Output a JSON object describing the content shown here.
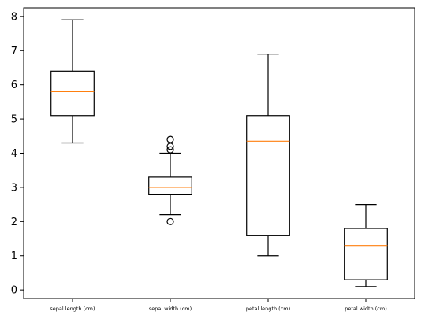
{
  "chart_data": {
    "type": "box",
    "title": "",
    "xlabel": "",
    "ylabel": "",
    "ylim": [
      -0.25,
      8.25
    ],
    "yticks": [
      0,
      1,
      2,
      3,
      4,
      5,
      6,
      7,
      8
    ],
    "grid": false,
    "categories": [
      "sepal length (cm)",
      "sepal width (cm)",
      "petal length (cm)",
      "petal width (cm)"
    ],
    "boxes": [
      {
        "category": "sepal length (cm)",
        "whisker_low": 4.3,
        "q1": 5.1,
        "median": 5.8,
        "q3": 6.4,
        "whisker_high": 7.9,
        "outliers": []
      },
      {
        "category": "sepal width (cm)",
        "whisker_low": 2.2,
        "q1": 2.8,
        "median": 3.0,
        "q3": 3.3,
        "whisker_high": 4.0,
        "outliers": [
          4.4,
          4.1,
          4.2,
          2.0
        ]
      },
      {
        "category": "petal length (cm)",
        "whisker_low": 1.0,
        "q1": 1.6,
        "median": 4.35,
        "q3": 5.1,
        "whisker_high": 6.9,
        "outliers": []
      },
      {
        "category": "petal width (cm)",
        "whisker_low": 0.1,
        "q1": 0.3,
        "median": 1.3,
        "q3": 1.8,
        "whisker_high": 2.5,
        "outliers": []
      }
    ],
    "colors": {
      "box": "#000000",
      "median": "#ff7f0e",
      "outlier": "#000000"
    }
  }
}
